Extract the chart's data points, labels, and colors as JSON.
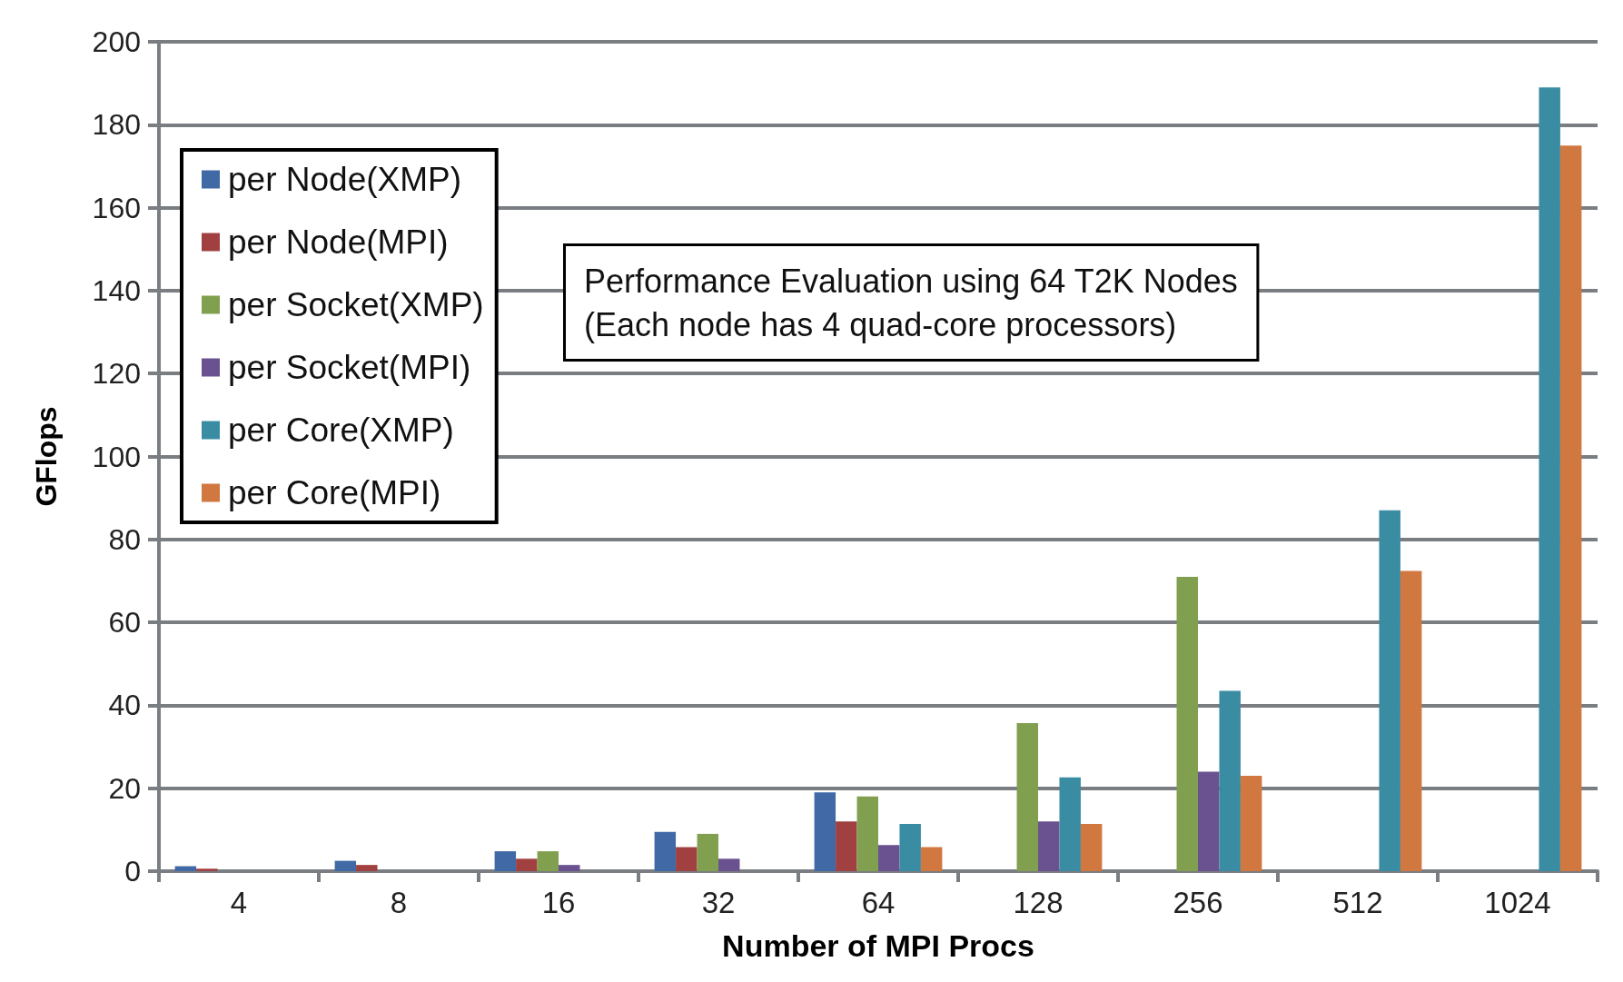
{
  "chart_data": {
    "type": "bar",
    "xlabel": "Number of MPI Procs",
    "ylabel": "GFlops",
    "categories": [
      "4",
      "8",
      "16",
      "32",
      "64",
      "128",
      "256",
      "512",
      "1024"
    ],
    "series": [
      {
        "name": "per Node(XMP)",
        "color": "#4069a5",
        "values": [
          1.2,
          2.5,
          4.8,
          9.5,
          19,
          null,
          null,
          null,
          null
        ]
      },
      {
        "name": "per Node(MPI)",
        "color": "#a04040",
        "values": [
          0.6,
          1.5,
          3,
          5.8,
          12,
          null,
          null,
          null,
          null
        ]
      },
      {
        "name": "per Socket(XMP)",
        "color": "#80a050",
        "values": [
          null,
          null,
          4.8,
          9,
          18,
          35.7,
          71,
          null,
          null
        ]
      },
      {
        "name": "per Socket(MPI)",
        "color": "#6a5290",
        "values": [
          null,
          null,
          1.5,
          3,
          6.3,
          12,
          24,
          null,
          null
        ]
      },
      {
        "name": "per Core(XMP)",
        "color": "#3a8ca3",
        "values": [
          null,
          null,
          null,
          null,
          11.4,
          22.6,
          43.5,
          87,
          189
        ]
      },
      {
        "name": "per Core(MPI)",
        "color": "#d07840",
        "values": [
          null,
          null,
          null,
          null,
          5.8,
          11.4,
          23,
          72.4,
          175
        ]
      }
    ],
    "ylim": [
      0,
      200
    ],
    "yticks": [
      0,
      20,
      40,
      60,
      80,
      100,
      120,
      140,
      160,
      180,
      200
    ],
    "grid": "y",
    "legend": "top left",
    "annotations": [
      "Performance Evaluation using 64 T2K Nodes\n(Each node has 4 quad-core processors)"
    ]
  }
}
